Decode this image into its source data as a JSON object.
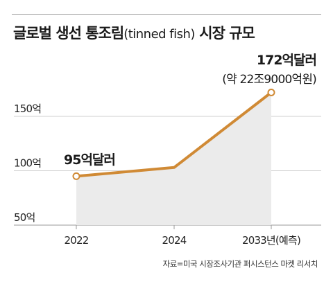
{
  "title": {
    "main": "글로벌 생선 통조림",
    "sub": "(tinned fish)",
    "tail": "시장 규모"
  },
  "chart_data": {
    "type": "line",
    "x": [
      "2022",
      "2024",
      "2033년(예측)"
    ],
    "values": [
      95,
      103,
      172
    ],
    "y_ticks": [
      {
        "value": 50,
        "label": "50억"
      },
      {
        "value": 100,
        "label": "100억"
      },
      {
        "value": 150,
        "label": "150억"
      }
    ],
    "ylim": [
      50,
      180
    ],
    "grid": true,
    "fill_under": true,
    "annotations": [
      {
        "point": 0,
        "text": "95억달러"
      },
      {
        "point": 2,
        "text": "172억달러",
        "subtext": "(약 22조9000억원)"
      }
    ],
    "colors": {
      "line": "#d08a35",
      "area": "#ebebeb",
      "grid": "#cfcfcf",
      "marker_fill": "#ffffff"
    }
  },
  "source": "자료=미국 시장조사기관 퍼시스턴스 마켓 리서치"
}
